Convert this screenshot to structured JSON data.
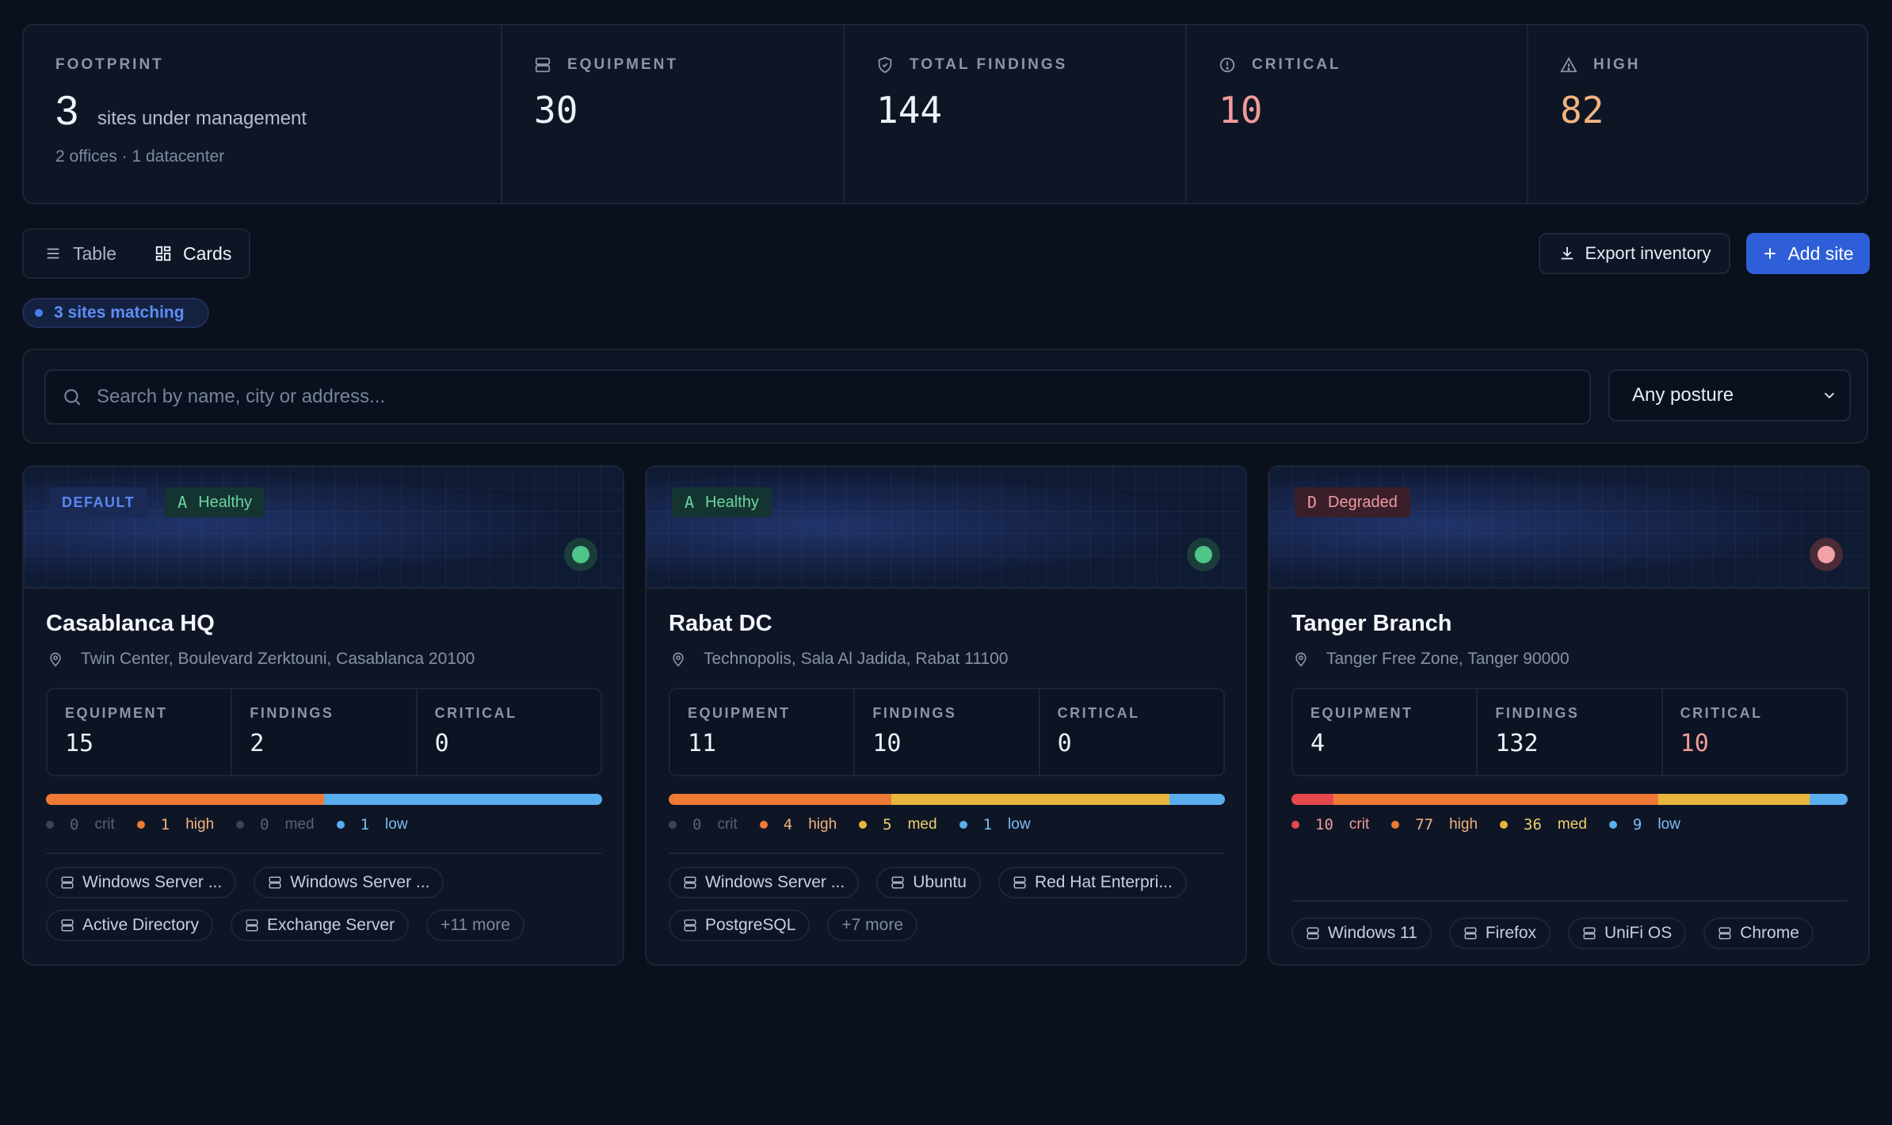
{
  "summary": {
    "footprint": {
      "label": "FOOTPRINT",
      "count": "3",
      "text": "sites under management",
      "sub": "2 offices · 1 datacenter"
    },
    "equipment": {
      "label": "EQUIPMENT",
      "value": "30",
      "icon": "server-icon"
    },
    "total_findings": {
      "label": "TOTAL FINDINGS",
      "value": "144",
      "icon": "shield-icon"
    },
    "critical": {
      "label": "CRITICAL",
      "value": "10",
      "icon": "alert-circle-icon",
      "color": "#f09a9a"
    },
    "high": {
      "label": "HIGH",
      "value": "82",
      "icon": "warning-triangle-icon",
      "color": "#f2b47e"
    }
  },
  "toolbar": {
    "view_table": "Table",
    "view_cards": "Cards",
    "active_view": "Cards",
    "export_label": "Export inventory",
    "add_label": "Add site",
    "accent": "#2f5fd8"
  },
  "filter": {
    "match_count": "3 sites matching",
    "search_placeholder": "Search by name, city or address...",
    "search_value": "",
    "posture_selected": "Any posture"
  },
  "severity_colors": {
    "crit": "#e5484d",
    "high": "#ee7a36",
    "med": "#e8b73d",
    "low": "#5aaef0"
  },
  "sites": [
    {
      "name": "Casablanca HQ",
      "address": "Twin Center, Boulevard Zerktouni, Casablanca 20100",
      "is_default": true,
      "default_label": "DEFAULT",
      "grade": "A",
      "posture": "Healthy",
      "status": "healthy",
      "equipment_label": "EQUIPMENT",
      "equipment": "15",
      "findings_label": "FINDINGS",
      "findings": "2",
      "critical_label": "CRITICAL",
      "critical": "0",
      "sev": {
        "crit": "0",
        "high": "1",
        "med": "0",
        "low": "1"
      },
      "sev_labels": {
        "crit": "crit",
        "high": "high",
        "med": "med",
        "low": "low"
      },
      "chips": [
        "Windows Server ...",
        "Windows Server ...",
        "Active Directory",
        "Exchange Server"
      ],
      "more": "+11 more"
    },
    {
      "name": "Rabat DC",
      "address": "Technopolis, Sala Al Jadida, Rabat 11100",
      "is_default": false,
      "grade": "A",
      "posture": "Healthy",
      "status": "healthy",
      "equipment_label": "EQUIPMENT",
      "equipment": "11",
      "findings_label": "FINDINGS",
      "findings": "10",
      "critical_label": "CRITICAL",
      "critical": "0",
      "sev": {
        "crit": "0",
        "high": "4",
        "med": "5",
        "low": "1"
      },
      "sev_labels": {
        "crit": "crit",
        "high": "high",
        "med": "med",
        "low": "low"
      },
      "chips": [
        "Windows Server ...",
        "Ubuntu",
        "Red Hat Enterpri...",
        "PostgreSQL"
      ],
      "more": "+7 more"
    },
    {
      "name": "Tanger Branch",
      "address": "Tanger Free Zone, Tanger 90000",
      "is_default": false,
      "grade": "D",
      "posture": "Degraded",
      "status": "degraded",
      "equipment_label": "EQUIPMENT",
      "equipment": "4",
      "findings_label": "FINDINGS",
      "findings": "132",
      "critical_label": "CRITICAL",
      "critical": "10",
      "sev": {
        "crit": "10",
        "high": "77",
        "med": "36",
        "low": "9"
      },
      "sev_labels": {
        "crit": "crit",
        "high": "high",
        "med": "med",
        "low": "low"
      },
      "chips": [
        "Windows 11",
        "Firefox",
        "UniFi OS",
        "Chrome"
      ],
      "more": ""
    }
  ]
}
